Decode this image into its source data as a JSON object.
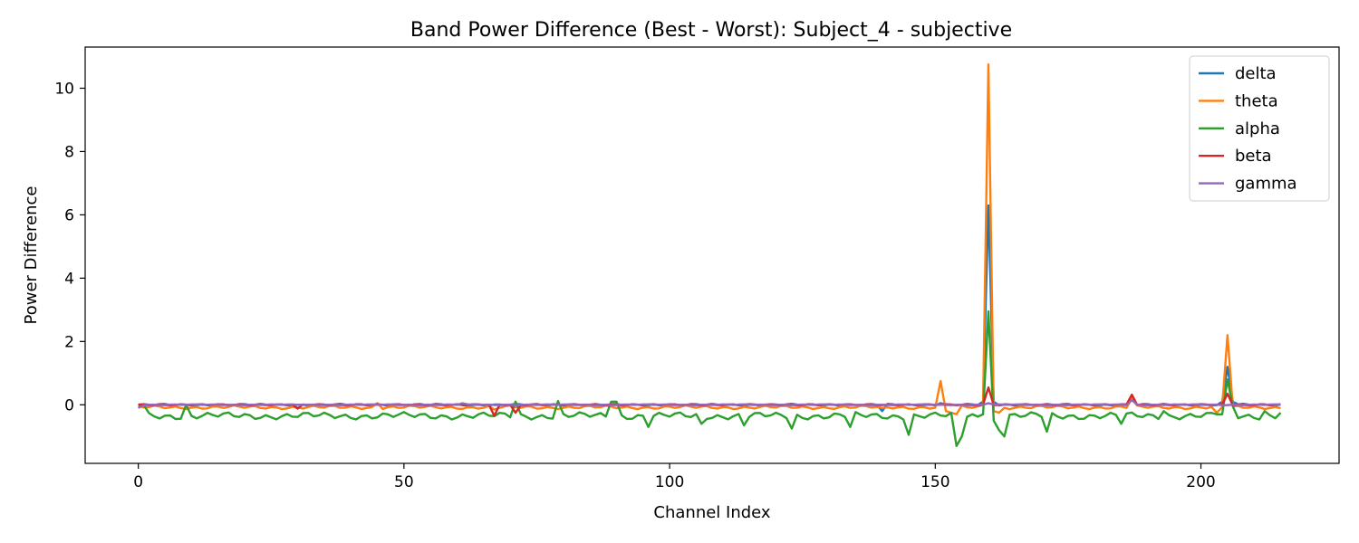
{
  "chart_data": {
    "type": "line",
    "title": "Band Power Difference (Best - Worst): Subject_4 - subjective",
    "xlabel": "Channel Index",
    "ylabel": "Power Difference",
    "xlim": [
      -10,
      226
    ],
    "ylim": [
      -1.85,
      11.3
    ],
    "xticks": [
      0,
      50,
      100,
      150,
      200
    ],
    "yticks": [
      0,
      2,
      4,
      6,
      8,
      10
    ],
    "grid": false,
    "legend_position": "top-right",
    "n_points": 216,
    "series": [
      {
        "name": "delta",
        "color": "#1f77b4",
        "baseline": 0.0,
        "noise": 0.03,
        "spikes": [
          [
            140,
            -0.2
          ],
          [
            151,
            0.05
          ],
          [
            159,
            0.1
          ],
          [
            160,
            6.3
          ],
          [
            161,
            0.1
          ],
          [
            187,
            0.25
          ],
          [
            204,
            0.1
          ],
          [
            205,
            1.2
          ],
          [
            206,
            0.1
          ]
        ]
      },
      {
        "name": "theta",
        "color": "#ff7f0e",
        "baseline": -0.08,
        "noise": 0.06,
        "spikes": [
          [
            45,
            0.05
          ],
          [
            67,
            -0.15
          ],
          [
            140,
            -0.1
          ],
          [
            151,
            0.75
          ],
          [
            152,
            -0.2
          ],
          [
            153,
            -0.25
          ],
          [
            154,
            -0.3
          ],
          [
            159,
            0.0
          ],
          [
            160,
            10.75
          ],
          [
            161,
            -0.2
          ],
          [
            162,
            -0.25
          ],
          [
            187,
            0.2
          ],
          [
            203,
            -0.25
          ],
          [
            205,
            2.2
          ],
          [
            206,
            -0.05
          ]
        ]
      },
      {
        "name": "alpha",
        "color": "#2ca02c",
        "baseline": -0.35,
        "noise": 0.12,
        "spikes": [
          [
            0,
            0.0
          ],
          [
            1,
            0.0
          ],
          [
            9,
            0.0
          ],
          [
            71,
            0.1
          ],
          [
            79,
            0.12
          ],
          [
            89,
            0.1
          ],
          [
            90,
            0.1
          ],
          [
            96,
            -0.7
          ],
          [
            106,
            -0.6
          ],
          [
            114,
            -0.65
          ],
          [
            123,
            -0.75
          ],
          [
            134,
            -0.7
          ],
          [
            145,
            -0.95
          ],
          [
            154,
            -1.3
          ],
          [
            155,
            -1.0
          ],
          [
            159,
            -0.3
          ],
          [
            160,
            2.95
          ],
          [
            161,
            -0.5
          ],
          [
            162,
            -0.8
          ],
          [
            163,
            -1.0
          ],
          [
            171,
            -0.85
          ],
          [
            185,
            -0.6
          ],
          [
            193,
            -0.2
          ],
          [
            203,
            -0.3
          ],
          [
            204,
            -0.3
          ],
          [
            205,
            0.8
          ],
          [
            206,
            -0.05
          ],
          [
            212,
            -0.2
          ],
          [
            215,
            -0.25
          ]
        ]
      },
      {
        "name": "beta",
        "color": "#d62728",
        "baseline": 0.0,
        "noise": 0.02,
        "spikes": [
          [
            30,
            -0.12
          ],
          [
            67,
            -0.35
          ],
          [
            71,
            -0.25
          ],
          [
            160,
            0.55
          ],
          [
            187,
            0.32
          ],
          [
            205,
            0.35
          ]
        ]
      },
      {
        "name": "gamma",
        "color": "#9467bd",
        "baseline": 0.0,
        "noise": 0.015,
        "spikes": [
          [
            0,
            -0.1
          ],
          [
            61,
            0.05
          ],
          [
            160,
            0.05
          ],
          [
            187,
            0.15
          ]
        ]
      }
    ]
  }
}
